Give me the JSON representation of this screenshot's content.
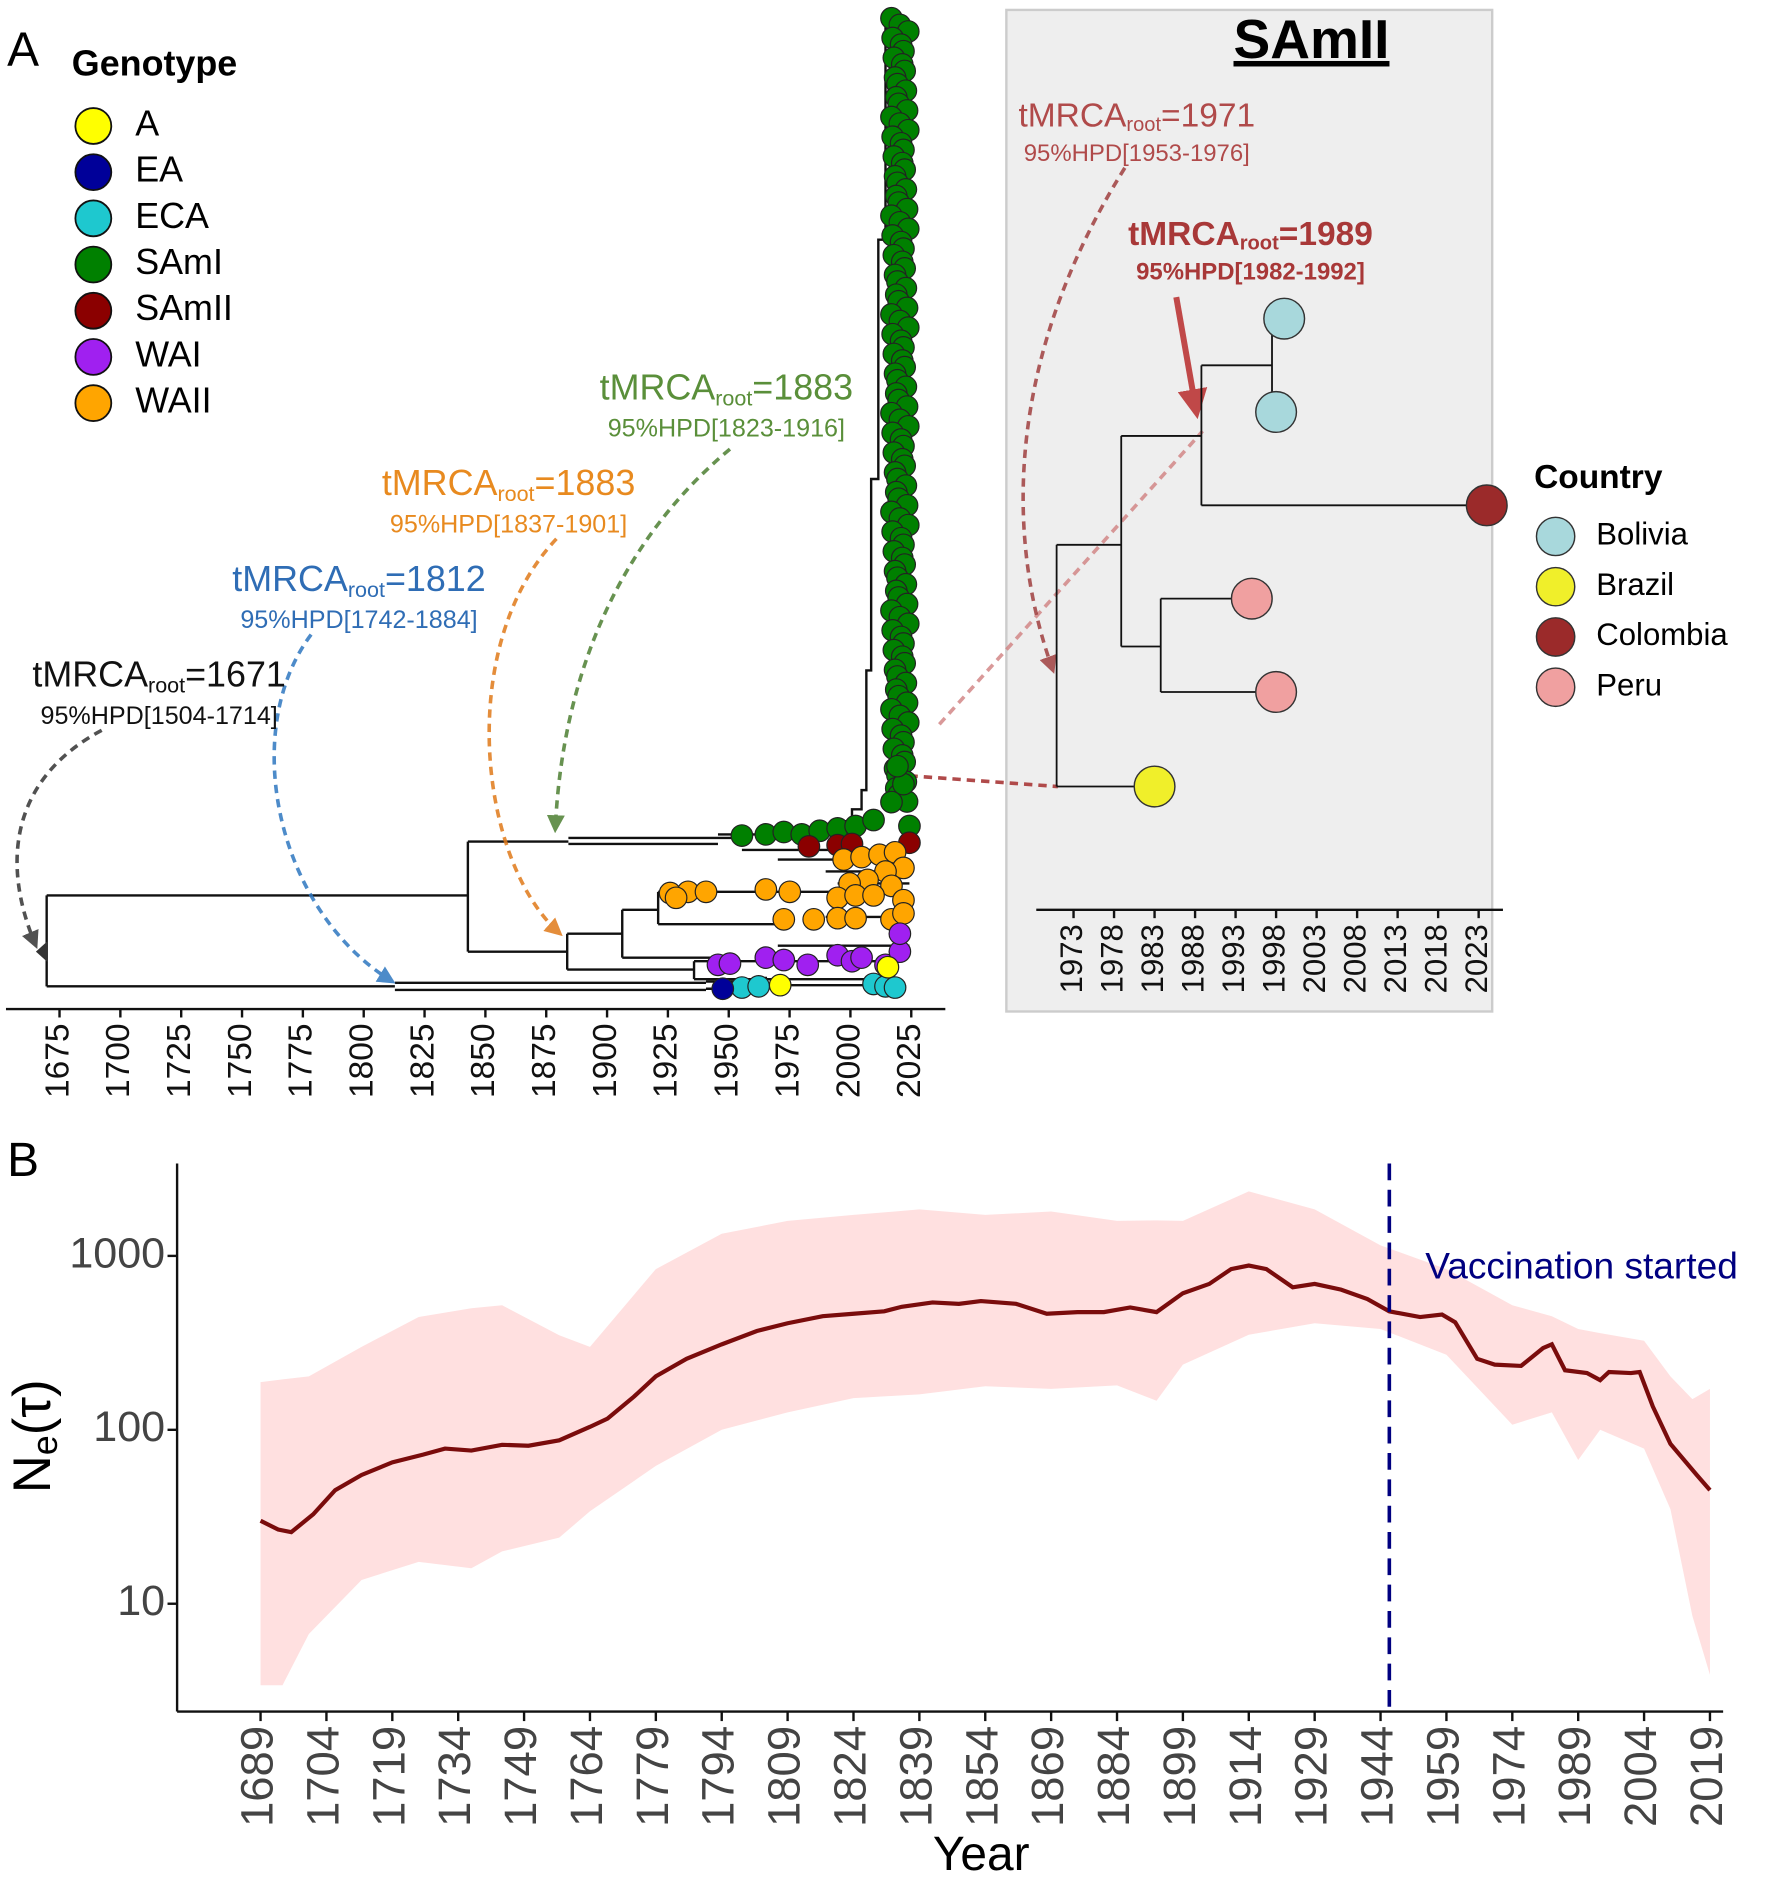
{
  "panel_labels": [
    "A",
    "B"
  ],
  "chart_data": [
    {
      "type": "tree",
      "legend_title": "Genotype",
      "genotypes": [
        {
          "name": "A",
          "color": "#ffff00"
        },
        {
          "name": "EA",
          "color": "#000099"
        },
        {
          "name": "ECA",
          "color": "#1ec8cf"
        },
        {
          "name": "SAmI",
          "color": "#008000"
        },
        {
          "name": "SAmII",
          "color": "#8b0000"
        },
        {
          "name": "WAI",
          "color": "#a020f0"
        },
        {
          "name": "WAII",
          "color": "#ffa500"
        }
      ],
      "xlim": [
        1653,
        2039
      ],
      "xticks": [
        1675,
        1700,
        1725,
        1750,
        1775,
        1800,
        1825,
        1850,
        1875,
        1900,
        1925,
        1950,
        1975,
        2000,
        2025
      ],
      "annotations": [
        {
          "tmrca": "tMRCA",
          "sub": "root",
          "value": "=1671",
          "hpd": "95%HPD[1504-1714]",
          "color": "#111111"
        },
        {
          "tmrca": "tMRCA",
          "sub": "root",
          "value": "=1812",
          "hpd": "95%HPD[1742-1884]",
          "color": "#2f6db5"
        },
        {
          "tmrca": "tMRCA",
          "sub": "root",
          "value": "=1883",
          "hpd": "95%HPD[1837-1901]",
          "color": "#e88a1f"
        },
        {
          "tmrca": "tMRCA",
          "sub": "root",
          "value": "=1883",
          "hpd": "95%HPD[1823-1916]",
          "color": "#5a8f3a"
        }
      ]
    },
    {
      "type": "tree",
      "title": "SAmII",
      "legend_title": "Country",
      "countries": [
        {
          "name": "Bolivia",
          "color": "#a8d8dc"
        },
        {
          "name": "Brazil",
          "color": "#f0ef2a"
        },
        {
          "name": "Colombia",
          "color": "#9b2a2a"
        },
        {
          "name": "Peru",
          "color": "#f0a0a0"
        }
      ],
      "xlim": [
        1968.4,
        2026
      ],
      "xticks": [
        1973,
        1978,
        1983,
        1988,
        1993,
        1998,
        2003,
        2008,
        2013,
        2018,
        2023
      ],
      "tips": [
        {
          "country": 0,
          "year": 1999
        },
        {
          "country": 0,
          "year": 1998
        },
        {
          "country": 2,
          "year": 2024
        },
        {
          "country": 3,
          "year": 1995
        },
        {
          "country": 3,
          "year": 1998
        },
        {
          "country": 1,
          "year": 1983
        }
      ],
      "annotations": [
        {
          "tmrca": "tMRCA",
          "sub": "root",
          "value": "=1971",
          "hpd": "95%HPD[1953-1976]",
          "color": "#b04a4a"
        },
        {
          "tmrca": "tMRCA",
          "sub": "root",
          "value": "=1989",
          "hpd": "95%HPD[1982-1992]",
          "color": "#a83838"
        }
      ]
    },
    {
      "type": "line",
      "xlabel": "Year",
      "ylabel": [
        "N",
        "e",
        "(τ)"
      ],
      "ylog": true,
      "xlim": [
        1670,
        2022
      ],
      "xticks": [
        1689,
        1704,
        1719,
        1734,
        1749,
        1764,
        1779,
        1794,
        1809,
        1824,
        1839,
        1854,
        1869,
        1884,
        1899,
        1914,
        1929,
        1944,
        1959,
        1974,
        1989,
        2004,
        2019
      ],
      "ylim": [
        2.4,
        3400
      ],
      "yticks": [
        10,
        100,
        1000
      ],
      "x": [
        1689,
        1693,
        1696,
        1701,
        1706,
        1712,
        1719,
        1726,
        1731,
        1737,
        1744,
        1750,
        1757,
        1764,
        1768,
        1774,
        1779,
        1786,
        1794,
        1802,
        1809,
        1817,
        1824,
        1831,
        1835,
        1842,
        1848,
        1853,
        1861,
        1868,
        1875,
        1881,
        1887,
        1893,
        1899,
        1905,
        1910,
        1914,
        1918,
        1924,
        1929,
        1935,
        1941,
        1946,
        1953,
        1958,
        1961,
        1966,
        1970,
        1976,
        1981,
        1983,
        1986,
        1991,
        1994,
        1996,
        2001,
        2003,
        2006,
        2010,
        2016,
        2019
      ],
      "series": [
        {
          "color": "#7a0c0c",
          "values": [
            30,
            26.7,
            25.8,
            32.7,
            45,
            55,
            65,
            72,
            78,
            76,
            82,
            81,
            87,
            104,
            116,
            155,
            203,
            256,
            310,
            370,
            410,
            450,
            465,
            480,
            510,
            540,
            530,
            550,
            530,
            465,
            475,
            475,
            505,
            475,
            610,
            690,
            840,
            880,
            840,
            660,
            690,
            640,
            565,
            480,
            445,
            460,
            415,
            256,
            237,
            233,
            295,
            310,
            220,
            212,
            193,
            215,
            212,
            215,
            136,
            83,
            55,
            45
          ]
        }
      ],
      "band": {
        "color": "#ffe0e0",
        "x": [
          1689,
          1694,
          1700,
          1712,
          1725,
          1737,
          1744,
          1757,
          1764,
          1779,
          1794,
          1809,
          1824,
          1839,
          1854,
          1869,
          1884,
          1893,
          1899,
          1914,
          1929,
          1944,
          1959,
          1974,
          1983,
          1989,
          1994,
          2004,
          2010,
          2015,
          2019
        ],
        "upper": [
          188,
          195,
          203,
          300,
          445,
          500,
          520,
          350,
          300,
          840,
          1340,
          1590,
          1720,
          1850,
          1720,
          1800,
          1590,
          1600,
          1590,
          2350,
          1850,
          1150,
          840,
          520,
          450,
          380,
          360,
          325,
          203,
          150,
          172
        ],
        "lower": [
          3.4,
          3.4,
          6.7,
          13.7,
          17.4,
          16,
          20,
          24,
          34,
          62,
          100,
          126,
          152,
          160,
          178,
          172,
          180,
          147,
          237,
          352,
          410,
          380,
          270,
          107,
          126,
          67,
          100,
          78,
          35,
          8.5,
          3.9
        ]
      },
      "vline": {
        "x": 1946,
        "label": "Vaccination started",
        "color": "#000080"
      }
    }
  ]
}
